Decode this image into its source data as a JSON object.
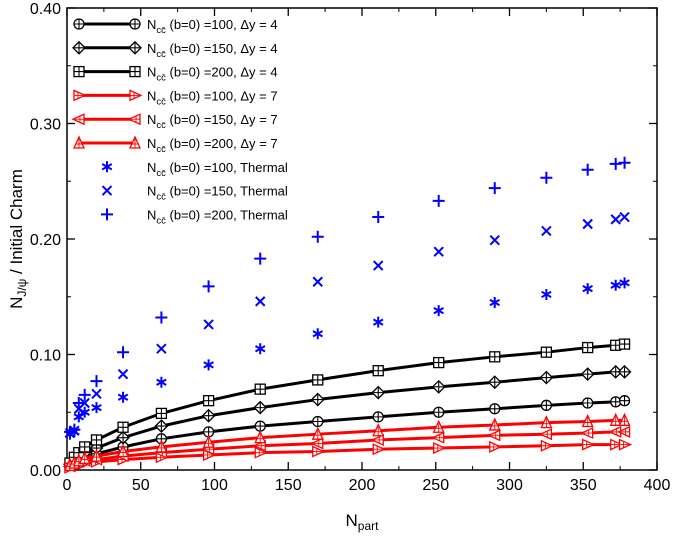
{
  "chart_data": {
    "type": "line",
    "xlabel": {
      "main": "N",
      "sub": "part"
    },
    "ylabel": {
      "main": "N",
      "sub": "J/ψ",
      "rest": " / Initial Charm"
    },
    "xlim": [
      0,
      400
    ],
    "ylim": [
      0,
      0.4
    ],
    "xticks": [
      0,
      50,
      100,
      150,
      200,
      250,
      300,
      350,
      400
    ],
    "yticks": [
      0.0,
      0.1,
      0.2,
      0.3,
      0.4
    ],
    "xtick_labels": [
      "0",
      "50",
      "100",
      "150",
      "200",
      "250",
      "300",
      "350",
      "400"
    ],
    "ytick_labels": [
      "0.00",
      "0.10",
      "0.20",
      "0.30",
      "0.40"
    ],
    "grid": false,
    "legend_position": "top-left",
    "series": [
      {
        "name": "Ncc(b=0)=100, Δy=4",
        "legend": {
          "main": "N",
          "sub": "cc̄",
          "rest": " (b=0) =100, Δy = 4"
        },
        "color": "#000000",
        "marker": "circle-plus",
        "line": true,
        "x": [
          2,
          5,
          8,
          12,
          20,
          38,
          64,
          96,
          131,
          170,
          211,
          252,
          290,
          325,
          353,
          372,
          378
        ],
        "y": [
          0.004,
          0.007,
          0.009,
          0.011,
          0.014,
          0.02,
          0.027,
          0.033,
          0.038,
          0.042,
          0.046,
          0.05,
          0.053,
          0.056,
          0.058,
          0.059,
          0.06
        ]
      },
      {
        "name": "Ncc(b=0)=150, Δy=4",
        "legend": {
          "main": "N",
          "sub": "cc̄",
          "rest": " (b=0) =150, Δy = 4"
        },
        "color": "#000000",
        "marker": "diamond-plus",
        "line": true,
        "x": [
          2,
          5,
          8,
          12,
          20,
          38,
          64,
          96,
          131,
          170,
          211,
          252,
          290,
          325,
          353,
          372,
          378
        ],
        "y": [
          0.005,
          0.009,
          0.012,
          0.015,
          0.019,
          0.028,
          0.038,
          0.047,
          0.054,
          0.061,
          0.067,
          0.072,
          0.076,
          0.08,
          0.083,
          0.085,
          0.085
        ]
      },
      {
        "name": "Ncc(b=0)=200, Δy=4",
        "legend": {
          "main": "N",
          "sub": "cc̄",
          "rest": " (b=0) =200, Δy = 4"
        },
        "color": "#000000",
        "marker": "square-plus",
        "line": true,
        "x": [
          2,
          5,
          8,
          12,
          20,
          38,
          64,
          96,
          131,
          170,
          211,
          252,
          290,
          325,
          353,
          372,
          378
        ],
        "y": [
          0.006,
          0.011,
          0.015,
          0.02,
          0.026,
          0.037,
          0.049,
          0.06,
          0.07,
          0.078,
          0.086,
          0.093,
          0.098,
          0.102,
          0.106,
          0.108,
          0.109
        ]
      },
      {
        "name": "Ncc(b=0)=100, Δy=7",
        "legend": {
          "main": "N",
          "sub": "cc̄",
          "rest": " (b=0) =100, Δy = 7"
        },
        "color": "#ff0000",
        "marker": "triangle-right",
        "line": true,
        "x": [
          2,
          5,
          8,
          12,
          20,
          38,
          64,
          96,
          131,
          170,
          211,
          252,
          290,
          325,
          353,
          372,
          378
        ],
        "y": [
          0.002,
          0.004,
          0.005,
          0.006,
          0.007,
          0.009,
          0.011,
          0.013,
          0.015,
          0.016,
          0.018,
          0.019,
          0.02,
          0.021,
          0.022,
          0.022,
          0.022
        ]
      },
      {
        "name": "Ncc(b=0)=150, Δy=7",
        "legend": {
          "main": "N",
          "sub": "cc̄",
          "rest": " (b=0) =150, Δy = 7"
        },
        "color": "#ff0000",
        "marker": "triangle-left",
        "line": true,
        "x": [
          2,
          5,
          8,
          12,
          20,
          38,
          64,
          96,
          131,
          170,
          211,
          252,
          290,
          325,
          353,
          372,
          378
        ],
        "y": [
          0.003,
          0.005,
          0.007,
          0.008,
          0.009,
          0.012,
          0.015,
          0.018,
          0.021,
          0.023,
          0.026,
          0.028,
          0.03,
          0.031,
          0.032,
          0.033,
          0.033
        ]
      },
      {
        "name": "Ncc(b=0)=200, Δy=7",
        "legend": {
          "main": "N",
          "sub": "cc̄",
          "rest": " (b=0) =200, Δy = 7"
        },
        "color": "#ff0000",
        "marker": "triangle-up",
        "line": true,
        "x": [
          2,
          5,
          8,
          12,
          20,
          38,
          64,
          96,
          131,
          170,
          211,
          252,
          290,
          325,
          353,
          372,
          378
        ],
        "y": [
          0.004,
          0.006,
          0.008,
          0.01,
          0.012,
          0.016,
          0.02,
          0.024,
          0.028,
          0.031,
          0.034,
          0.037,
          0.039,
          0.041,
          0.042,
          0.043,
          0.043
        ]
      },
      {
        "name": "Ncc(b=0)=100, Thermal",
        "legend": {
          "main": "N",
          "sub": "cc̄",
          "rest": " (b=0) =100, Thermal"
        },
        "color": "#0000ff",
        "marker": "asterisk",
        "line": false,
        "x": [
          2,
          5,
          8,
          12,
          20,
          38,
          64,
          96,
          131,
          170,
          211,
          252,
          290,
          325,
          353,
          372,
          378
        ],
        "y": [
          0.031,
          0.033,
          0.046,
          0.05,
          0.054,
          0.063,
          0.076,
          0.091,
          0.105,
          0.118,
          0.128,
          0.138,
          0.145,
          0.152,
          0.157,
          0.16,
          0.162
        ]
      },
      {
        "name": "Ncc(b=0)=150, Thermal",
        "legend": {
          "main": "N",
          "sub": "cc̄",
          "rest": " (b=0) =150, Thermal"
        },
        "color": "#0000ff",
        "marker": "cross",
        "line": false,
        "x": [
          2,
          5,
          8,
          12,
          20,
          38,
          64,
          96,
          131,
          170,
          211,
          252,
          290,
          325,
          353,
          372,
          378
        ],
        "y": [
          0.032,
          0.034,
          0.053,
          0.058,
          0.066,
          0.083,
          0.105,
          0.126,
          0.146,
          0.163,
          0.177,
          0.189,
          0.199,
          0.207,
          0.213,
          0.217,
          0.219
        ]
      },
      {
        "name": "Ncc(b=0)=200, Thermal",
        "legend": {
          "main": "N",
          "sub": "cc̄",
          "rest": " (b=0) =200, Thermal"
        },
        "color": "#0000ff",
        "marker": "plus",
        "line": false,
        "x": [
          2,
          5,
          8,
          12,
          20,
          38,
          64,
          96,
          131,
          170,
          211,
          252,
          290,
          325,
          353,
          372,
          378
        ],
        "y": [
          0.033,
          0.035,
          0.058,
          0.065,
          0.077,
          0.102,
          0.132,
          0.159,
          0.183,
          0.202,
          0.219,
          0.233,
          0.244,
          0.253,
          0.26,
          0.265,
          0.266
        ]
      }
    ]
  }
}
